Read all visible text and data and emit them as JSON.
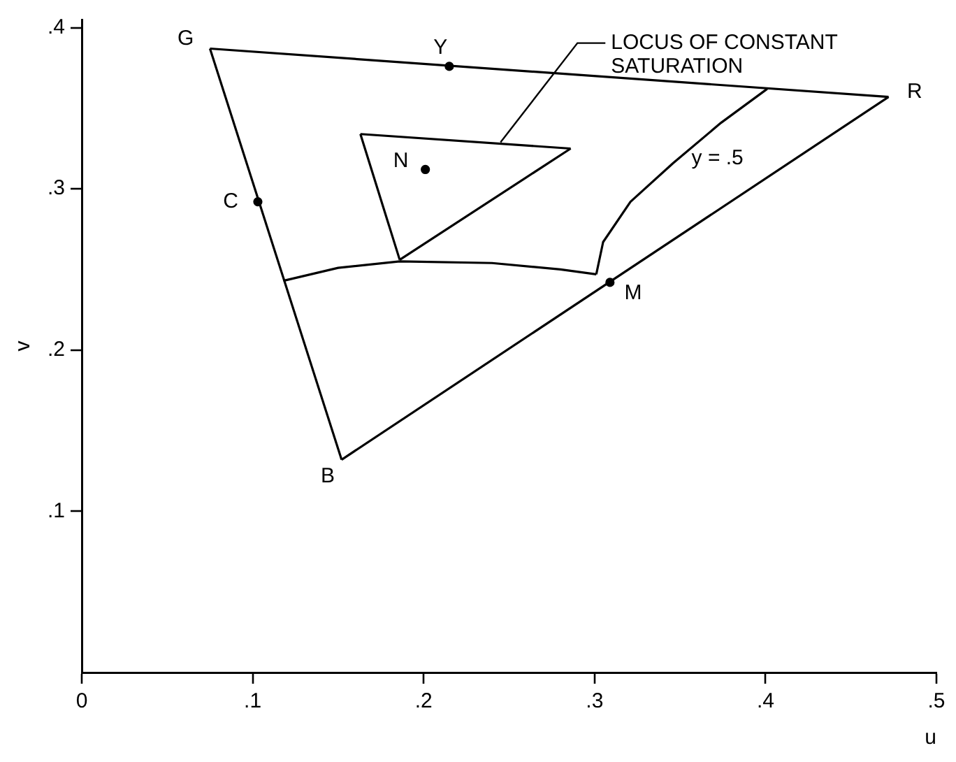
{
  "chart_data": {
    "type": "line",
    "xlabel": "u",
    "ylabel": "v",
    "xlim": [
      0,
      0.5
    ],
    "ylim": [
      0,
      0.405
    ],
    "xticks": [
      {
        "value": 0,
        "label": "0"
      },
      {
        "value": 0.1,
        "label": ".1"
      },
      {
        "value": 0.2,
        "label": ".2"
      },
      {
        "value": 0.3,
        "label": ".3"
      },
      {
        "value": 0.4,
        "label": ".4"
      },
      {
        "value": 0.5,
        "label": ".5"
      }
    ],
    "yticks": [
      {
        "value": 0.1,
        "label": ".1"
      },
      {
        "value": 0.2,
        "label": ".2"
      },
      {
        "value": 0.3,
        "label": ".3"
      },
      {
        "value": 0.4,
        "label": ".4"
      }
    ],
    "grid": false,
    "legend": false,
    "line_style": "solid",
    "series": [
      {
        "type": "line",
        "color": "#000000",
        "x": [
          0.075,
          0.472
        ],
        "values": [
          0.387,
          0.357
        ]
      },
      {
        "type": "line",
        "color": "#000000",
        "x": [
          0.075,
          0.152
        ],
        "values": [
          0.387,
          0.132
        ]
      },
      {
        "type": "line",
        "color": "#000000",
        "x": [
          0.152,
          0.472
        ],
        "values": [
          0.132,
          0.357
        ]
      },
      {
        "type": "line",
        "color": "#000000",
        "x": [
          0.118,
          0.15,
          0.186,
          0.24,
          0.28,
          0.301
        ],
        "values": [
          0.243,
          0.251,
          0.255,
          0.254,
          0.25,
          0.247
        ]
      },
      {
        "type": "line",
        "color": "#000000",
        "x": [
          0.301,
          0.305,
          0.321,
          0.346,
          0.374,
          0.401
        ],
        "values": [
          0.247,
          0.267,
          0.292,
          0.316,
          0.341,
          0.362
        ]
      },
      {
        "type": "line",
        "color": "#000000",
        "x": [
          0.163,
          0.286
        ],
        "values": [
          0.334,
          0.325
        ]
      },
      {
        "type": "line",
        "color": "#000000",
        "x": [
          0.163,
          0.186
        ],
        "values": [
          0.334,
          0.256
        ]
      },
      {
        "type": "line",
        "color": "#000000",
        "x": [
          0.186,
          0.286
        ],
        "values": [
          0.256,
          0.325
        ]
      },
      {
        "type": "scatter",
        "color": "#000000",
        "marker": "circle",
        "x": [
          0.215,
          0.103,
          0.201,
          0.309
        ],
        "values": [
          0.376,
          0.292,
          0.312,
          0.242
        ]
      }
    ],
    "annotations": [
      {
        "text": "G",
        "x": 0.075,
        "y": 0.387
      },
      {
        "text": "Y",
        "x": 0.215,
        "y": 0.376
      },
      {
        "text": "R",
        "x": 0.472,
        "y": 0.357
      },
      {
        "text": "C",
        "x": 0.103,
        "y": 0.292
      },
      {
        "text": "N",
        "x": 0.201,
        "y": 0.312
      },
      {
        "text": "M",
        "x": 0.309,
        "y": 0.242
      },
      {
        "text": "B",
        "x": 0.152,
        "y": 0.132
      },
      {
        "text": "y = .5",
        "x": 0.346,
        "y": 0.316
      },
      {
        "text": "LOCUS OF CONSTANT SATURATION",
        "x": 0.245,
        "y": 0.328
      }
    ]
  }
}
